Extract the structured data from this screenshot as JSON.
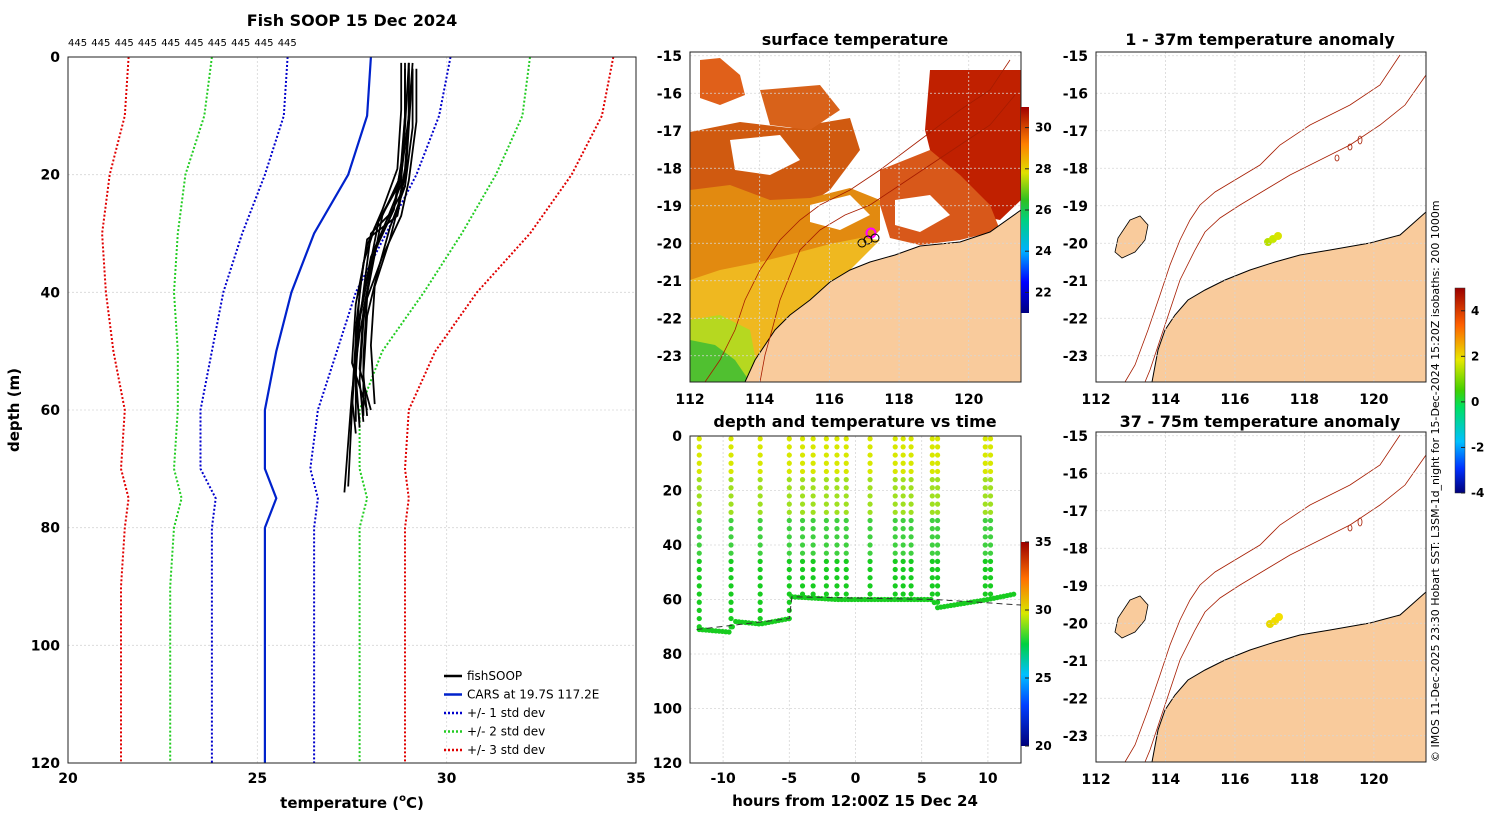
{
  "colors": {
    "land": "#f9cb9c",
    "profile": "#000000",
    "cars": "#0022cc",
    "std1": "#0000cc",
    "std2": "#22cc22",
    "std3": "#e00000",
    "isobath": "#a61c00"
  },
  "copyright": "© IMOS 11-Dec-2025 23:30 Hobart SST: L3SM-1d_night for 15-Dec-2024 15:20Z isobaths: 200  1000m",
  "chart_data": [
    {
      "id": "profile",
      "type": "line",
      "title": "Fish SOOP 15 Dec 2024",
      "top_labels": [
        "445",
        "445",
        "445",
        "445",
        "445",
        "445",
        "445",
        "445",
        "445",
        "445"
      ],
      "xlabel": "temperature (°C)",
      "ylabel": "depth (m)",
      "xlim": [
        20,
        35
      ],
      "ylim": [
        0,
        120
      ],
      "xticks": [
        20,
        25,
        30,
        35
      ],
      "yticks": [
        0,
        20,
        40,
        60,
        80,
        100,
        120
      ],
      "legend": [
        "fishSOOP",
        "CARS at 19.7S 117.2E",
        "+/- 1 std dev",
        "+/- 2 std dev",
        "+/- 3 std dev"
      ],
      "series": [
        {
          "name": "CARS",
          "style": "solid",
          "color": "cars",
          "depth": [
            0,
            10,
            20,
            30,
            40,
            50,
            60,
            70,
            75,
            80,
            90,
            120
          ],
          "temp": [
            28.0,
            27.9,
            27.4,
            26.5,
            25.9,
            25.5,
            25.2,
            25.2,
            25.5,
            25.2,
            25.2,
            25.2
          ]
        },
        {
          "name": "+1 std",
          "style": "dot",
          "color": "std1",
          "depth": [
            0,
            10,
            20,
            30,
            40,
            50,
            60,
            70,
            75,
            80,
            90,
            120
          ],
          "temp": [
            25.8,
            25.7,
            25.2,
            24.6,
            24.1,
            23.8,
            23.5,
            23.5,
            23.9,
            23.8,
            23.8,
            23.8
          ]
        },
        {
          "name": "-1 std",
          "style": "dot",
          "color": "std1",
          "depth": [
            0,
            10,
            20,
            30,
            40,
            50,
            60,
            70,
            75,
            80,
            90,
            120
          ],
          "temp": [
            30.1,
            29.8,
            29.2,
            28.4,
            27.6,
            27.1,
            26.6,
            26.4,
            26.6,
            26.5,
            26.5,
            26.5
          ]
        },
        {
          "name": "+2 std",
          "style": "dot",
          "color": "std2",
          "depth": [
            0,
            10,
            20,
            30,
            40,
            50,
            60,
            70,
            75,
            80,
            90,
            120
          ],
          "temp": [
            23.8,
            23.6,
            23.1,
            22.9,
            22.8,
            22.9,
            22.9,
            22.8,
            23.0,
            22.8,
            22.7,
            22.7
          ]
        },
        {
          "name": "-2 std",
          "style": "dot",
          "color": "std2",
          "depth": [
            0,
            10,
            20,
            30,
            40,
            50,
            60,
            70,
            75,
            80,
            90,
            120
          ],
          "temp": [
            32.2,
            32.0,
            31.3,
            30.4,
            29.4,
            28.3,
            27.7,
            27.7,
            27.9,
            27.7,
            27.7,
            27.7
          ]
        },
        {
          "name": "+3 std",
          "style": "dot",
          "color": "std3",
          "depth": [
            0,
            10,
            20,
            30,
            40,
            50,
            60,
            70,
            75,
            80,
            90,
            120
          ],
          "temp": [
            21.6,
            21.5,
            21.1,
            20.9,
            21.0,
            21.2,
            21.5,
            21.4,
            21.6,
            21.5,
            21.4,
            21.4
          ]
        },
        {
          "name": "-3 std",
          "style": "dot",
          "color": "std3",
          "depth": [
            0,
            10,
            20,
            30,
            40,
            50,
            60,
            70,
            75,
            80,
            90,
            120
          ],
          "temp": [
            34.4,
            34.1,
            33.3,
            32.2,
            30.8,
            29.7,
            29.0,
            28.9,
            29.0,
            28.9,
            28.9,
            28.9
          ]
        }
      ],
      "profiles": [
        {
          "depth": [
            1,
            10,
            20,
            26,
            30,
            40,
            50,
            60,
            73
          ],
          "temp": [
            28.9,
            28.9,
            28.8,
            28.6,
            28.0,
            27.8,
            27.6,
            27.5,
            27.4
          ]
        },
        {
          "depth": [
            2,
            10,
            20,
            27,
            31,
            40,
            50,
            62
          ],
          "temp": [
            29.1,
            29.0,
            28.9,
            28.7,
            27.9,
            27.7,
            27.6,
            27.6
          ]
        },
        {
          "depth": [
            1,
            10,
            20,
            28,
            35,
            45,
            55,
            62
          ],
          "temp": [
            29.0,
            29.0,
            28.9,
            28.4,
            28.0,
            27.8,
            27.7,
            27.8
          ]
        },
        {
          "depth": [
            2,
            12,
            22,
            29,
            36,
            44,
            54,
            61
          ],
          "temp": [
            29.1,
            29.1,
            28.9,
            28.5,
            28.2,
            27.9,
            27.8,
            27.9
          ]
        },
        {
          "depth": [
            1,
            9,
            19,
            26,
            32,
            42,
            52,
            60
          ],
          "temp": [
            28.8,
            28.8,
            28.7,
            28.3,
            27.9,
            27.6,
            27.5,
            27.9
          ]
        },
        {
          "depth": [
            2,
            11,
            21,
            27,
            34,
            41,
            51,
            61
          ],
          "temp": [
            29.2,
            29.2,
            29.0,
            28.8,
            28.3,
            27.9,
            27.8,
            27.8
          ]
        },
        {
          "depth": [
            1,
            12,
            21,
            28,
            38,
            48,
            58,
            64
          ],
          "temp": [
            29.0,
            28.9,
            28.8,
            28.2,
            27.9,
            27.6,
            27.5,
            27.6
          ]
        },
        {
          "depth": [
            2,
            10,
            18,
            26,
            33,
            43,
            53,
            60
          ],
          "temp": [
            28.9,
            28.9,
            28.8,
            28.6,
            28.1,
            27.8,
            27.7,
            28.0
          ]
        },
        {
          "depth": [
            1,
            10,
            20,
            27,
            37,
            47,
            57,
            74
          ],
          "temp": [
            29.1,
            29.0,
            28.8,
            28.3,
            28.0,
            27.7,
            27.5,
            27.3
          ]
        },
        {
          "depth": [
            2,
            11,
            22,
            29,
            35,
            46,
            56,
            62
          ],
          "temp": [
            29.0,
            29.0,
            28.7,
            28.1,
            27.8,
            27.6,
            27.6,
            27.7
          ]
        },
        {
          "depth": [
            1,
            10,
            19,
            26,
            31,
            39,
            49,
            59
          ],
          "temp": [
            29.0,
            29.0,
            28.9,
            28.7,
            28.5,
            28.1,
            28.0,
            28.1
          ]
        },
        {
          "depth": [
            2,
            12,
            22,
            28,
            34,
            44,
            54,
            63
          ],
          "temp": [
            29.1,
            29.0,
            28.9,
            28.4,
            28.0,
            27.7,
            27.6,
            27.7
          ]
        }
      ]
    },
    {
      "id": "sst",
      "type": "heatmap",
      "title": "surface temperature",
      "xlim": [
        112,
        121.5
      ],
      "ylim": [
        -23.7,
        -14.9
      ],
      "xticks": [
        112,
        114,
        116,
        118,
        120
      ],
      "yticks": [
        -15,
        -16,
        -17,
        -18,
        -19,
        -20,
        -21,
        -22,
        -23
      ],
      "colorbar": {
        "min": 21,
        "max": 31,
        "ticks": [
          22,
          24,
          26,
          28,
          30
        ]
      }
    },
    {
      "id": "anom1",
      "type": "heatmap",
      "title": "1 - 37m temperature anomaly",
      "xlim": [
        112,
        121.5
      ],
      "ylim": [
        -23.7,
        -14.9
      ],
      "xticks": [
        112,
        114,
        116,
        118,
        120
      ],
      "yticks": [
        -15,
        -16,
        -17,
        -18,
        -19,
        -20,
        -21,
        -22,
        -23
      ],
      "colorbar": {
        "min": -4,
        "max": 5,
        "ticks": [
          4,
          2,
          0,
          -2,
          -4
        ]
      }
    },
    {
      "id": "anom2",
      "type": "heatmap",
      "title": "37 - 75m temperature anomaly",
      "xlim": [
        112,
        121.5
      ],
      "ylim": [
        -23.7,
        -14.9
      ],
      "xticks": [
        112,
        114,
        116,
        118,
        120
      ],
      "yticks": [
        -15,
        -16,
        -17,
        -18,
        -19,
        -20,
        -21,
        -22,
        -23
      ]
    },
    {
      "id": "timeseries",
      "type": "scatter",
      "title": "depth and temperature vs time",
      "xlabel": "hours from 12:00Z 15 Dec 24",
      "xlim": [
        -12.5,
        12.5
      ],
      "ylim": [
        0,
        120
      ],
      "xticks": [
        -10,
        -5,
        0,
        5,
        10
      ],
      "yticks": [
        0,
        20,
        40,
        60,
        80,
        100,
        120
      ],
      "colorbar": {
        "min": 20,
        "max": 35,
        "ticks": [
          35,
          30,
          25,
          20
        ]
      },
      "dives": [
        -11.8,
        -9.4,
        -7.2,
        -5.0,
        -4.0,
        -3.2,
        -2.2,
        -1.4,
        -0.7,
        1.1,
        3.0,
        3.6,
        4.2,
        5.8,
        6.2,
        9.8,
        10.2
      ],
      "floor": [
        [
          -11.8,
          71
        ],
        [
          -9.4,
          72
        ],
        [
          -9.2,
          68
        ],
        [
          -7.2,
          69
        ],
        [
          -5.0,
          67
        ],
        [
          -4.8,
          59
        ],
        [
          -1.4,
          60
        ],
        [
          -0.7,
          60
        ],
        [
          1.1,
          60
        ],
        [
          5.8,
          60
        ],
        [
          6.2,
          63
        ],
        [
          10.0,
          60
        ],
        [
          12.0,
          58
        ]
      ],
      "trend": [
        [
          -12,
          71
        ],
        [
          -5,
          67
        ],
        [
          -4.8,
          59
        ],
        [
          6,
          60
        ],
        [
          12.5,
          62
        ]
      ]
    }
  ]
}
